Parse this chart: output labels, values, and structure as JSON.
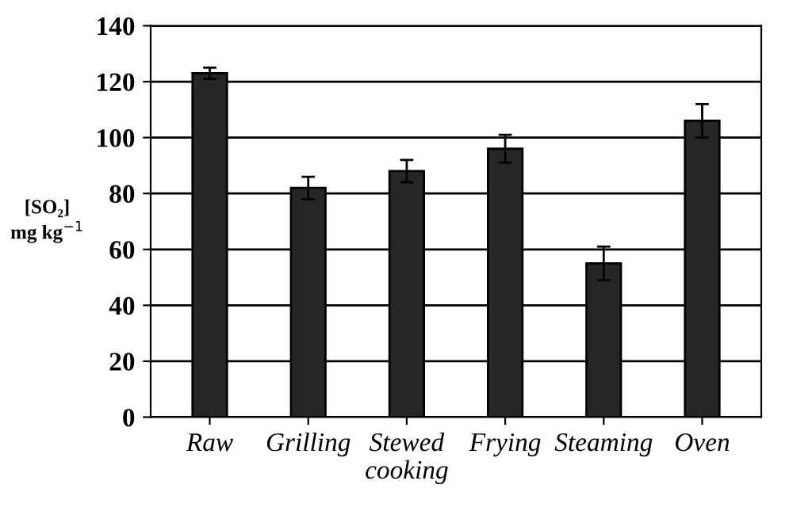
{
  "chart_data": {
    "type": "bar",
    "ylabel": "[SO₂]\nmg kg$^{−1}$",
    "categories": [
      "Raw",
      "Grilling",
      "Stewed\ncooking",
      "Frying",
      "Steaming",
      "Oven"
    ],
    "values": [
      123,
      82,
      88,
      96,
      55,
      106
    ],
    "errors": [
      2,
      4,
      4,
      5,
      6,
      6
    ],
    "color": "#262626",
    "ylim": [
      0,
      140
    ],
    "yticks": [
      0,
      20,
      40,
      60,
      80,
      100,
      120,
      140
    ],
    "grid": "y"
  }
}
